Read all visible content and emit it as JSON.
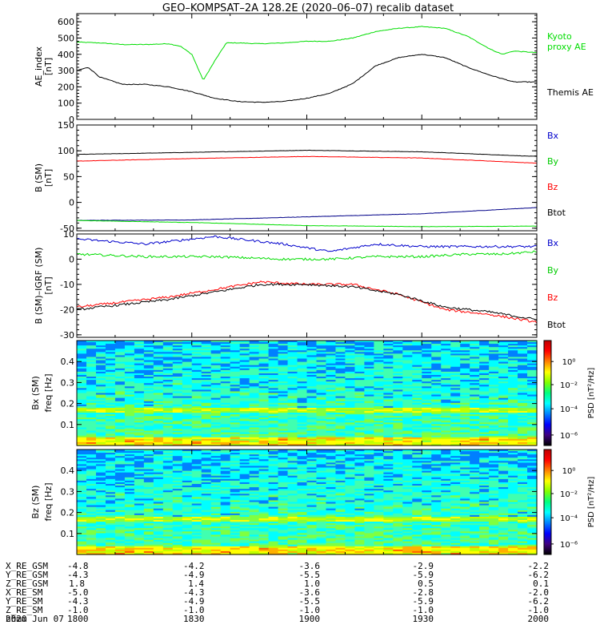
{
  "title": "GEO–KOMPSAT–2A 128.2E (2020–06–07) recalib dataset",
  "colors": {
    "black": "#000000",
    "red": "#ff0000",
    "green": "#00dd00",
    "blue": "#0000cc"
  },
  "chart_data": [
    {
      "type": "line",
      "ylabel": "AE_index [nT]",
      "ylim": [
        0,
        650
      ],
      "yticks": [
        0,
        100,
        200,
        300,
        400,
        500,
        600
      ],
      "x_hours": [
        18.0,
        18.1,
        18.2,
        18.3,
        18.4,
        18.5,
        18.6,
        18.7,
        18.8,
        18.9,
        19.0,
        19.1,
        19.2,
        19.3,
        19.4,
        19.5,
        19.6,
        19.7,
        19.8,
        19.9,
        20.0
      ],
      "series": [
        {
          "name": "Kyoto proxy AE",
          "color": "#00dd00",
          "x": [
            18.0,
            18.1,
            18.2,
            18.3,
            18.4,
            18.45,
            18.5,
            18.55,
            18.6,
            18.65,
            18.7,
            18.8,
            18.9,
            19.0,
            19.1,
            19.2,
            19.3,
            19.4,
            19.5,
            19.6,
            19.7,
            19.8,
            19.85,
            19.9,
            20.0
          ],
          "values": [
            475,
            470,
            460,
            460,
            465,
            450,
            400,
            240,
            360,
            470,
            470,
            465,
            470,
            480,
            480,
            500,
            540,
            560,
            570,
            560,
            510,
            430,
            400,
            420,
            410
          ]
        },
        {
          "name": "Themis AE",
          "color": "#000000",
          "x": [
            18.0,
            18.05,
            18.1,
            18.2,
            18.3,
            18.4,
            18.5,
            18.6,
            18.7,
            18.8,
            18.9,
            19.0,
            19.1,
            19.2,
            19.3,
            19.4,
            19.5,
            19.6,
            19.7,
            19.8,
            19.9,
            20.0
          ],
          "values": [
            300,
            320,
            260,
            215,
            215,
            200,
            170,
            130,
            110,
            105,
            110,
            130,
            160,
            220,
            330,
            380,
            400,
            380,
            320,
            270,
            230,
            230
          ]
        }
      ]
    },
    {
      "type": "line",
      "ylabel": "B (SM) [nT]",
      "ylim": [
        -55,
        150
      ],
      "yticks": [
        -50,
        0,
        50,
        100,
        150
      ],
      "series": [
        {
          "name": "Bx",
          "color": "#000000",
          "x": [
            18.0,
            18.5,
            19.0,
            19.5,
            20.0
          ],
          "values": [
            93,
            97,
            101,
            98,
            89
          ]
        },
        {
          "name": "By",
          "color": "#ff0000",
          "x": [
            18.0,
            18.5,
            19.0,
            19.5,
            20.0
          ],
          "values": [
            80,
            85,
            89,
            86,
            76
          ]
        },
        {
          "name": "Bz",
          "color": "#000088",
          "x": [
            18.0,
            18.5,
            19.0,
            19.5,
            20.0
          ],
          "values": [
            -35,
            -34,
            -28,
            -22,
            -10
          ]
        },
        {
          "name": "Btot",
          "color": "#00dd00",
          "x": [
            18.0,
            18.5,
            19.0,
            19.5,
            20.0
          ],
          "values": [
            -35,
            -39,
            -45,
            -47,
            -46
          ]
        }
      ]
    },
    {
      "type": "line",
      "ylabel": "B (SM)–IGRF (SM) [nT]",
      "ylim": [
        -31,
        10
      ],
      "yticks": [
        -30,
        -20,
        -10,
        0,
        10
      ],
      "series": [
        {
          "name": "Bx",
          "color": "#0000cc",
          "x": [
            18.0,
            18.3,
            18.6,
            18.9,
            19.1,
            19.3,
            19.5,
            19.7,
            19.85,
            20.0
          ],
          "values": [
            8,
            6,
            9,
            6,
            3,
            6,
            5,
            5,
            5,
            5
          ]
        },
        {
          "name": "By",
          "color": "#00dd00",
          "x": [
            18.0,
            18.3,
            18.6,
            18.9,
            19.1,
            19.3,
            19.5,
            19.7,
            19.85,
            20.0
          ],
          "values": [
            2,
            1,
            1,
            0,
            0,
            1,
            1,
            2,
            2,
            3
          ]
        },
        {
          "name": "Bz",
          "color": "#ff0000",
          "x": [
            18.0,
            18.2,
            18.4,
            18.6,
            18.8,
            19.0,
            19.2,
            19.4,
            19.6,
            19.8,
            20.0
          ],
          "values": [
            -19,
            -17,
            -15,
            -12,
            -9,
            -10,
            -10,
            -14,
            -20,
            -22,
            -25
          ]
        },
        {
          "name": "Btot",
          "color": "#000000",
          "x": [
            18.0,
            18.2,
            18.4,
            18.6,
            18.8,
            19.0,
            19.2,
            19.4,
            19.6,
            19.8,
            20.0
          ],
          "values": [
            -20,
            -18,
            -16,
            -13,
            -10,
            -10,
            -11,
            -14,
            -19,
            -21,
            -24
          ]
        }
      ]
    },
    {
      "type": "heatmap",
      "ylabel": "Bx (SM) freq [Hz]",
      "yticks": [
        0.1,
        0.2,
        0.3,
        0.4
      ],
      "ylim": [
        0,
        0.5
      ],
      "colorbar_label": "PSD [nT²/Hz]",
      "colorbar_ticks": [
        "10⁰",
        "10⁻²",
        "10⁻⁴",
        "10⁻⁶"
      ]
    },
    {
      "type": "heatmap",
      "ylabel": "Bz (SM) freq [Hz]",
      "yticks": [
        0.1,
        0.2,
        0.3,
        0.4
      ],
      "ylim": [
        0,
        0.5
      ],
      "colorbar_label": "PSD [nT²/Hz]",
      "colorbar_ticks": [
        "10⁰",
        "10⁻²",
        "10⁻⁴",
        "10⁻⁶"
      ]
    }
  ],
  "ephemeris": {
    "labels": [
      "X_RE_GSM",
      "Y_RE_GSM",
      "Z_RE_GSM",
      "X_RE_SM",
      "Y_RE_SM",
      "Z_RE_SM",
      "hhmm"
    ],
    "columns": [
      [
        "-4.8",
        "-4.3",
        "1.8",
        "-5.0",
        "-4.3",
        "-1.0",
        "1800"
      ],
      [
        "-4.2",
        "-4.9",
        "1.4",
        "-4.3",
        "-4.9",
        "-1.0",
        "1830"
      ],
      [
        "-3.6",
        "-5.5",
        "1.0",
        "-3.6",
        "-5.5",
        "-1.0",
        "1900"
      ],
      [
        "-2.9",
        "-5.9",
        "0.5",
        "-2.8",
        "-5.9",
        "-1.0",
        "1930"
      ],
      [
        "-2.2",
        "-6.2",
        "0.1",
        "-2.0",
        "-6.2",
        "-1.0",
        "2000"
      ]
    ],
    "date": "2020 Jun 07"
  }
}
